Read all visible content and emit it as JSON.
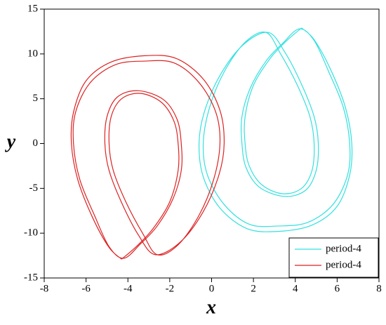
{
  "chart_data": {
    "type": "line",
    "xlabel": "x",
    "ylabel": "y",
    "xlim": [
      -8,
      8
    ],
    "xticks": [
      -8,
      -6,
      -4,
      -2,
      0,
      2,
      4,
      6,
      8
    ],
    "ylim": [
      -15,
      15
    ],
    "yticks": [
      -15,
      -10,
      -5,
      0,
      5,
      10,
      15
    ],
    "legend": "lower right",
    "series": [
      {
        "name": "period-4",
        "color": "#33e0e0",
        "x": [
          4.3,
          3.6,
          2.8,
          2.0,
          1.6,
          1.6,
          1.8,
          2.4,
          3.4,
          4.3,
          4.8,
          4.9,
          4.7,
          4.1,
          3.3,
          2.6,
          1.6,
          0.6,
          -0.1,
          -0.4,
          -0.2,
          0.6,
          1.8,
          3.2,
          4.6,
          5.8,
          6.5,
          6.6,
          6.3,
          5.6,
          4.9,
          4.2,
          3.4,
          2.6,
          1.85,
          1.45,
          1.45,
          1.65,
          2.3,
          3.5,
          4.5,
          5.0,
          5.1,
          4.9,
          4.3,
          3.5,
          2.7,
          1.5,
          0.4,
          -0.35,
          -0.6,
          -0.4,
          0.4,
          1.7,
          3.2,
          4.8,
          6.0,
          6.6,
          6.7,
          6.4,
          5.7,
          4.9,
          4.3
        ],
        "y": [
          12.9,
          11.5,
          9.5,
          6.5,
          3,
          0,
          -2.5,
          -4.6,
          -5.6,
          -5,
          -3,
          0,
          3,
          6.5,
          10,
          12.4,
          11.3,
          8,
          4,
          0,
          -3.5,
          -6.8,
          -9,
          -9.2,
          -8.8,
          -6.8,
          -3.5,
          0,
          4,
          8,
          11.5,
          12.8,
          11.2,
          9.2,
          6.2,
          3,
          0,
          -2.7,
          -4.9,
          -5.9,
          -5.2,
          -3,
          0,
          3,
          6.6,
          10.2,
          12.4,
          11.0,
          7.6,
          3.5,
          0,
          -3.7,
          -7.2,
          -9.5,
          -9.8,
          -9.1,
          -7.0,
          -3.5,
          0,
          4,
          8.2,
          11.6,
          12.9
        ]
      },
      {
        "name": "period-4",
        "color": "#dd2222",
        "x": [
          -4.3,
          -3.6,
          -2.8,
          -2.0,
          -1.6,
          -1.6,
          -1.8,
          -2.4,
          -3.4,
          -4.3,
          -4.8,
          -4.9,
          -4.7,
          -4.1,
          -3.3,
          -2.6,
          -1.6,
          -0.6,
          0.1,
          0.4,
          0.2,
          -0.6,
          -1.8,
          -3.2,
          -4.6,
          -5.8,
          -6.5,
          -6.6,
          -6.3,
          -5.6,
          -4.9,
          -4.2,
          -3.4,
          -2.6,
          -1.85,
          -1.45,
          -1.45,
          -1.65,
          -2.3,
          -3.5,
          -4.5,
          -5.0,
          -5.1,
          -4.9,
          -4.3,
          -3.5,
          -2.7,
          -1.5,
          -0.4,
          0.35,
          0.6,
          0.4,
          -0.4,
          -1.7,
          -3.2,
          -4.8,
          -6.0,
          -6.6,
          -6.7,
          -6.4,
          -5.7,
          -4.9,
          -4.3
        ],
        "y": [
          -12.9,
          -11.5,
          -9.5,
          -6.5,
          -3,
          0,
          2.5,
          4.6,
          5.6,
          5,
          3,
          0,
          -3,
          -6.5,
          -10,
          -12.4,
          -11.3,
          -8,
          -4,
          0,
          3.5,
          6.8,
          9,
          9.2,
          8.8,
          6.8,
          3.5,
          0,
          -4,
          -8,
          -11.5,
          -12.8,
          -11.2,
          -9.2,
          -6.2,
          -3,
          0,
          2.7,
          4.9,
          5.9,
          5.2,
          3,
          0,
          -3,
          -6.6,
          -10.2,
          -12.4,
          -11.0,
          -7.6,
          -3.5,
          0,
          3.7,
          7.2,
          9.5,
          9.8,
          9.1,
          7.0,
          3.5,
          0,
          -4,
          -8.2,
          -11.6,
          -12.9
        ]
      }
    ]
  }
}
